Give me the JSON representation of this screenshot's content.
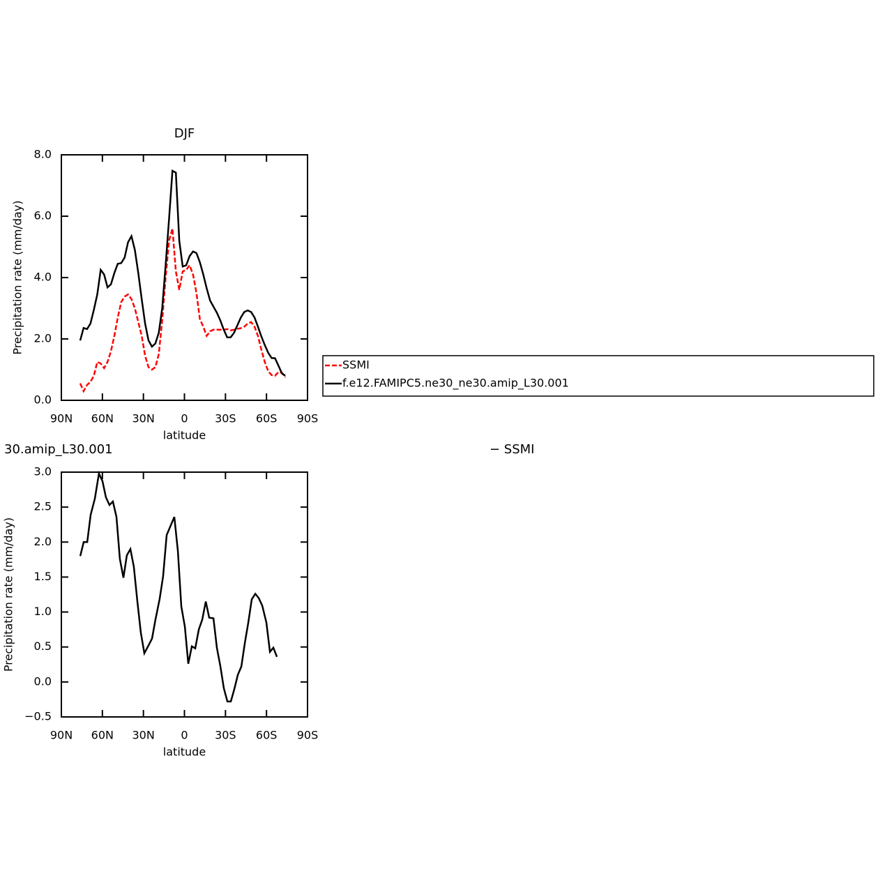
{
  "chart_data": [
    {
      "type": "line",
      "title": "DJF",
      "x_label": "latitude",
      "y_label": "Precipitation rate (mm/day)",
      "xlim": [
        90,
        -90
      ],
      "xticks": [
        {
          "value": 90,
          "label": "90N"
        },
        {
          "value": 60,
          "label": "60N"
        },
        {
          "value": 30,
          "label": "30N"
        },
        0,
        {
          "value": -30,
          "label": "30S"
        },
        {
          "value": -60,
          "label": "60S"
        },
        {
          "value": -90,
          "label": "90S"
        }
      ],
      "ylim": [
        0,
        8
      ],
      "yticks": [
        {
          "value": 0,
          "label": "0.0"
        },
        {
          "value": 2,
          "label": "2.0"
        },
        {
          "value": 4,
          "label": "4.0"
        },
        {
          "value": 6,
          "label": "6.0"
        },
        {
          "value": 8,
          "label": "8.0"
        }
      ],
      "legend": "right",
      "x": [
        76.25,
        73.75,
        71.25,
        68.75,
        66.25,
        63.75,
        61.25,
        58.75,
        56.25,
        53.75,
        51.25,
        48.75,
        46.25,
        43.75,
        41.25,
        38.75,
        36.25,
        33.75,
        31.25,
        28.75,
        26.25,
        23.75,
        21.25,
        18.75,
        16.25,
        13.75,
        11.25,
        8.75,
        6.25,
        3.75,
        1.25,
        -1.25,
        -3.75,
        -6.25,
        -8.75,
        -11.25,
        -13.75,
        -16.25,
        -18.75,
        -21.25,
        -23.75,
        -26.25,
        -28.75,
        -31.25,
        -33.75,
        -36.25,
        -38.75,
        -41.25,
        -43.75,
        -46.25,
        -48.75,
        -51.25,
        -53.75,
        -56.25,
        -58.75,
        -61.25,
        -63.75,
        -66.25,
        -68.75,
        -71.25,
        -73.75
      ],
      "series": [
        {
          "name": "SSMI",
          "color": "#ff0000",
          "dashed": true,
          "values": [
            0.55,
            0.3,
            0.5,
            0.6,
            0.8,
            1.25,
            1.2,
            1.05,
            1.25,
            1.6,
            2.1,
            2.7,
            3.2,
            3.38,
            3.45,
            3.3,
            3.0,
            2.55,
            2.1,
            1.45,
            1.08,
            1.0,
            1.08,
            1.5,
            2.6,
            4.0,
            5.2,
            5.6,
            4.2,
            3.6,
            4.2,
            4.25,
            4.4,
            4.1,
            3.5,
            2.65,
            2.4,
            2.1,
            2.25,
            2.3,
            2.3,
            2.3,
            2.3,
            2.32,
            2.28,
            2.3,
            2.33,
            2.35,
            2.4,
            2.5,
            2.55,
            2.4,
            2.1,
            1.65,
            1.25,
            0.95,
            0.82,
            0.8,
            0.92,
            0.9,
            0.75
          ]
        },
        {
          "name": "f.e12.FAMIPC5.ne30_ne30.amip_L30.001",
          "color": "#000000",
          "dashed": false,
          "values": [
            1.95,
            2.36,
            2.32,
            2.5,
            2.95,
            3.45,
            4.25,
            4.1,
            3.68,
            3.78,
            4.15,
            4.45,
            4.47,
            4.65,
            5.15,
            5.35,
            4.9,
            4.15,
            3.3,
            2.5,
            1.95,
            1.75,
            1.85,
            2.2,
            3.0,
            4.4,
            5.9,
            7.48,
            7.42,
            5.2,
            4.36,
            4.4,
            4.7,
            4.85,
            4.8,
            4.5,
            4.1,
            3.65,
            3.25,
            3.05,
            2.85,
            2.6,
            2.3,
            2.05,
            2.05,
            2.2,
            2.45,
            2.7,
            2.88,
            2.93,
            2.88,
            2.7,
            2.4,
            2.08,
            1.8,
            1.55,
            1.38,
            1.37,
            1.13,
            0.88,
            0.8
          ]
        }
      ]
    },
    {
      "type": "line",
      "title_left": "30.amip_L30.001",
      "title_right": "− SSMI",
      "x_label": "latitude",
      "y_label": "Precipitation rate (mm/day)",
      "xlim": [
        90,
        -90
      ],
      "xticks": [
        {
          "value": 90,
          "label": "90N"
        },
        {
          "value": 60,
          "label": "60N"
        },
        {
          "value": 30,
          "label": "30N"
        },
        0,
        {
          "value": -30,
          "label": "30S"
        },
        {
          "value": -60,
          "label": "60S"
        },
        {
          "value": -90,
          "label": "90S"
        }
      ],
      "ylim": [
        -0.5,
        3
      ],
      "yticks": [
        {
          "value": -0.5,
          "label": "−0.5"
        },
        {
          "value": 0,
          "label": "0.0"
        },
        0.5,
        {
          "value": 1,
          "label": "1.0"
        },
        1.5,
        {
          "value": 2,
          "label": "2.0"
        },
        2.5,
        {
          "value": 3,
          "label": "3.0"
        }
      ],
      "x": [
        76.2,
        73.7,
        71.1,
        68.6,
        65.5,
        62.5,
        59.9,
        57.4,
        54.8,
        52.3,
        49.7,
        47.2,
        44.6,
        42.1,
        39.5,
        37.0,
        34.4,
        31.9,
        29.3,
        26.3,
        23.7,
        21.2,
        18.1,
        15.6,
        13.0,
        7.4,
        4.8,
        2.3,
        -0.3,
        -2.8,
        -5.4,
        -7.9,
        -10.5,
        -13.0,
        -15.6,
        -18.1,
        -21.2,
        -23.7,
        -26.3,
        -28.8,
        -31.4,
        -33.9,
        -36.5,
        -39.0,
        -41.6,
        -44.1,
        -46.7,
        -49.2,
        -51.8,
        -54.3,
        -56.9,
        -59.9,
        -62.5,
        -65.0,
        -67.6
      ],
      "series": [
        {
          "color": "#000000",
          "dashed": false,
          "values": [
            1.8,
            2.0,
            2.0,
            2.39,
            2.62,
            2.98,
            2.87,
            2.64,
            2.53,
            2.58,
            2.36,
            1.76,
            1.49,
            1.81,
            1.9,
            1.65,
            1.15,
            0.71,
            0.41,
            0.52,
            0.62,
            0.89,
            1.19,
            1.51,
            2.1,
            2.36,
            1.87,
            1.08,
            0.79,
            0.26,
            0.51,
            0.48,
            0.75,
            0.89,
            1.15,
            0.92,
            0.91,
            0.49,
            0.22,
            -0.09,
            -0.28,
            -0.28,
            -0.1,
            0.1,
            0.22,
            0.55,
            0.85,
            1.18,
            1.26,
            1.2,
            1.09,
            0.85,
            0.43,
            0.49,
            0.36
          ]
        }
      ]
    }
  ]
}
